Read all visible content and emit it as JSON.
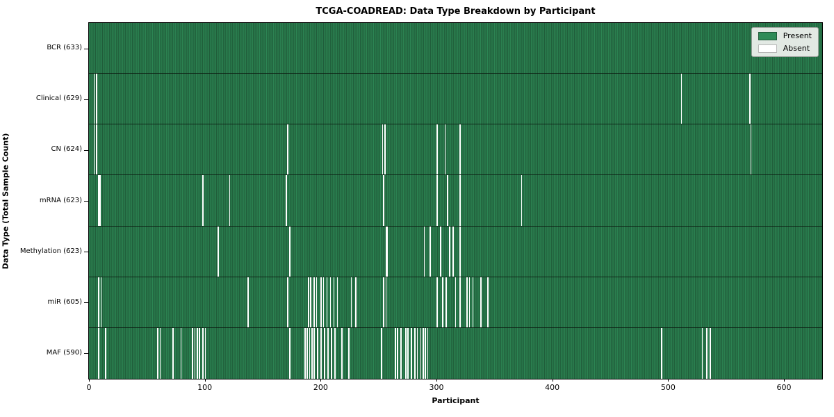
{
  "chart_data": {
    "type": "heatmap",
    "title": "TCGA-COADREAD: Data Type Breakdown by Participant",
    "xlabel": "Participant",
    "ylabel": "Data Type (Total Sample Count)",
    "x_ticks": [
      0,
      100,
      200,
      300,
      400,
      500,
      600
    ],
    "x_range": [
      0,
      633
    ],
    "total_participants": 633,
    "grid": false,
    "legend_position": "upper right",
    "legend": {
      "present": "Present",
      "absent": "Absent"
    },
    "colors": {
      "present_fill": "#2e8b57",
      "present_edge": "#1e5736",
      "absent_fill": "#ffffff",
      "row_separator": "#0a190f"
    },
    "rows": [
      {
        "label": "BCR (633)",
        "name": "BCR",
        "present_count": 633,
        "absent_count": 0,
        "absent_participants": []
      },
      {
        "label": "Clinical (629)",
        "name": "Clinical",
        "present_count": 629,
        "absent_count": 4,
        "absent_participants": [
          4,
          6,
          511,
          570
        ]
      },
      {
        "label": "CN (624)",
        "name": "CN",
        "present_count": 624,
        "absent_count": 9,
        "absent_participants": [
          4,
          6,
          171,
          253,
          255,
          300,
          307,
          320,
          571
        ]
      },
      {
        "label": "mRNA (623)",
        "name": "mRNA",
        "present_count": 623,
        "absent_count": 10,
        "absent_participants": [
          8,
          9,
          98,
          121,
          170,
          254,
          300,
          309,
          320,
          373
        ]
      },
      {
        "label": "Methylation (623)",
        "name": "Methylation",
        "present_count": 623,
        "absent_count": 10,
        "absent_participants": [
          111,
          173,
          256,
          257,
          289,
          294,
          303,
          311,
          314,
          320
        ]
      },
      {
        "label": "miR (605)",
        "name": "miR",
        "present_count": 605,
        "absent_count": 28,
        "absent_participants": [
          8,
          10,
          137,
          171,
          189,
          191,
          194,
          196,
          200,
          202,
          205,
          208,
          211,
          214,
          226,
          230,
          254,
          256,
          300,
          305,
          308,
          316,
          320,
          326,
          328,
          331,
          338,
          344
        ]
      },
      {
        "label": "MAF (590)",
        "name": "MAF",
        "present_count": 590,
        "absent_count": 43,
        "absent_participants": [
          8,
          14,
          59,
          61,
          72,
          79,
          89,
          91,
          93,
          95,
          98,
          100,
          173,
          186,
          188,
          190,
          192,
          194,
          197,
          200,
          203,
          206,
          209,
          212,
          218,
          224,
          252,
          264,
          266,
          269,
          273,
          275,
          278,
          281,
          283,
          286,
          288,
          290,
          292,
          494,
          529,
          533,
          536
        ]
      }
    ]
  }
}
